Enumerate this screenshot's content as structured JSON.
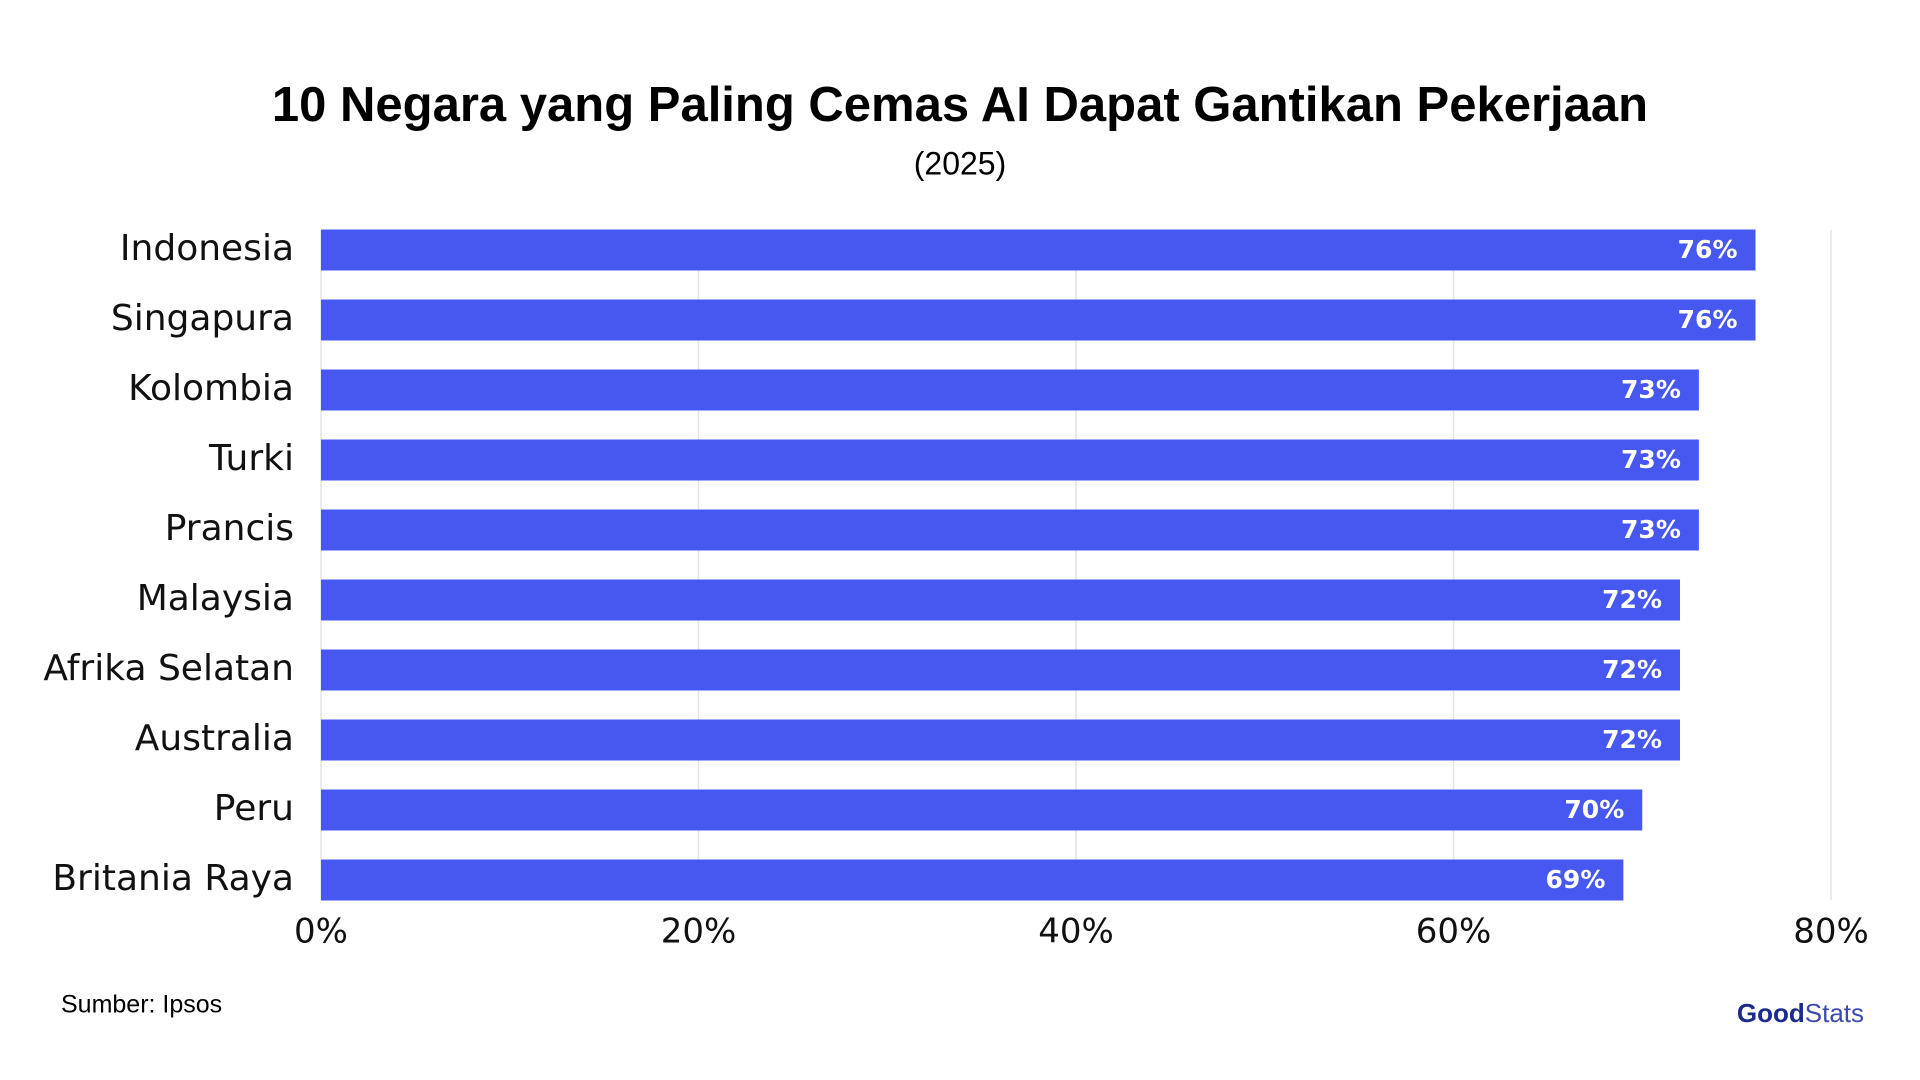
{
  "chart_data": {
    "type": "barh",
    "title": "10 Negara yang Paling Cemas AI Dapat Gantikan Pekerjaan",
    "subtitle": "(2025)",
    "categories": [
      "Indonesia",
      "Singapura",
      "Kolombia",
      "Turki",
      "Prancis",
      "Malaysia",
      "Afrika Selatan",
      "Australia",
      "Peru",
      "Britania Raya"
    ],
    "values": [
      76,
      76,
      73,
      73,
      73,
      72,
      72,
      72,
      70,
      69
    ],
    "value_labels": [
      "76%",
      "76%",
      "73%",
      "73%",
      "73%",
      "72%",
      "72%",
      "72%",
      "70%",
      "69%"
    ],
    "color": "#4658ef",
    "xlim": [
      0,
      80
    ],
    "xticks": [
      {
        "value": 0,
        "label": "0%"
      },
      {
        "value": 20,
        "label": "20%"
      },
      {
        "value": 40,
        "label": "40%"
      },
      {
        "value": 60,
        "label": "60%"
      },
      {
        "value": 80,
        "label": "80%"
      }
    ],
    "grid": true
  },
  "source": "Sumber: Ipsos",
  "brand": {
    "part1": "Good",
    "part2": "Stats"
  }
}
